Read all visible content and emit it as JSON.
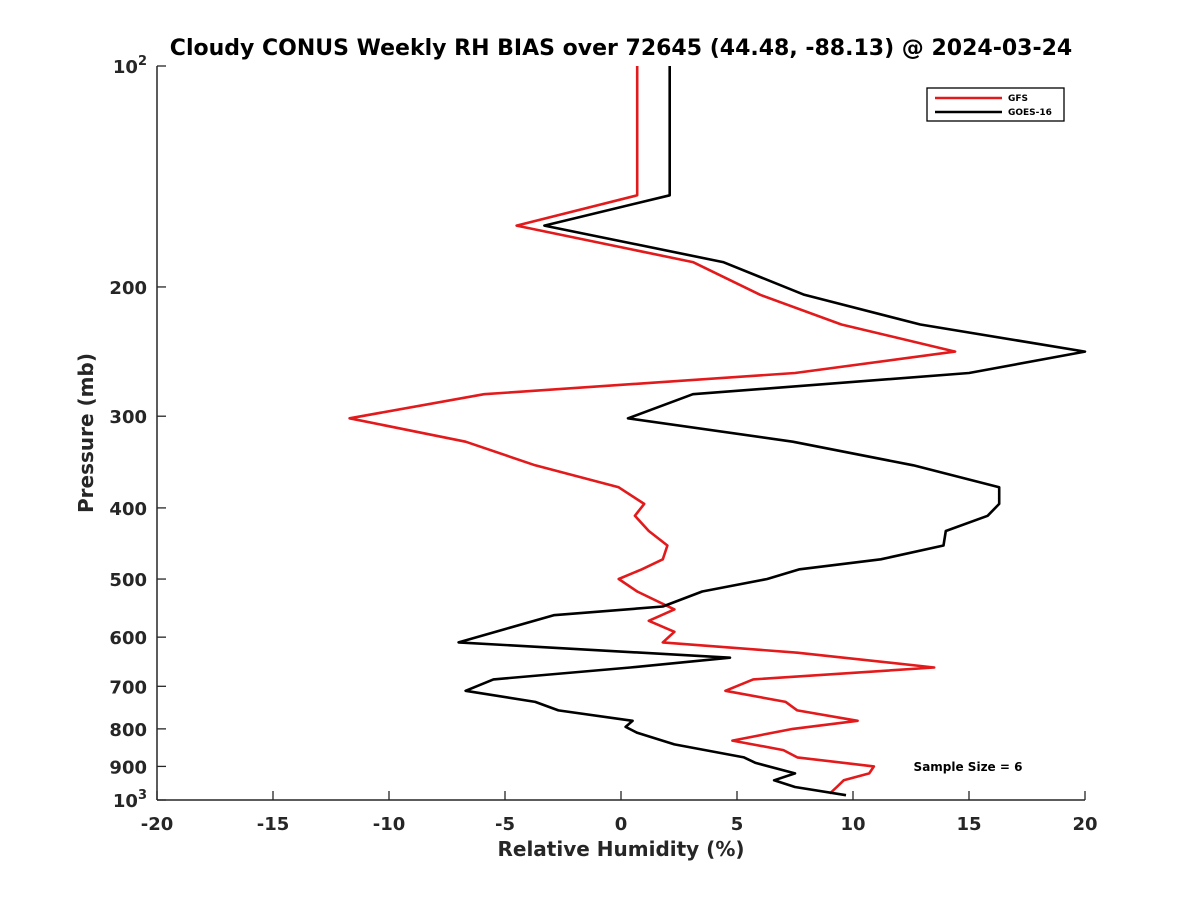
{
  "chart_data": {
    "type": "line",
    "title": "Cloudy CONUS Weekly RH BIAS over 72645 (44.48, -88.13) @ 2024-03-24",
    "xlabel": "Relative Humidity (%)",
    "ylabel": "Pressure (mb)",
    "xlim": [
      -20,
      20
    ],
    "ylim": [
      100,
      1000
    ],
    "y_scale": "log",
    "y_reversed": true,
    "grid": false,
    "legend_position": "top-right",
    "x_ticks": [
      "-20",
      "-15",
      "-10",
      "-5",
      "0",
      "5",
      "10",
      "15",
      "20"
    ],
    "y_ticks": [
      {
        "value": 100,
        "base": "10",
        "exp": "2"
      },
      {
        "value": 200,
        "label": "200"
      },
      {
        "value": 300,
        "label": "300"
      },
      {
        "value": 400,
        "label": "400"
      },
      {
        "value": 500,
        "label": "500"
      },
      {
        "value": 600,
        "label": "600"
      },
      {
        "value": 700,
        "label": "700"
      },
      {
        "value": 800,
        "label": "800"
      },
      {
        "value": 900,
        "label": "900"
      },
      {
        "value": 1000,
        "base": "10",
        "exp": "3"
      }
    ],
    "annotation": "Sample Size = 6",
    "series": [
      {
        "name": "GFS",
        "color": "#e31a1c",
        "points": [
          [
            0.7,
            100
          ],
          [
            0.7,
            125
          ],
          [
            0.7,
            150
          ],
          [
            -4.5,
            165
          ],
          [
            3.1,
            185
          ],
          [
            6.0,
            205
          ],
          [
            9.5,
            225
          ],
          [
            14.4,
            245
          ],
          [
            7.5,
            262
          ],
          [
            -5.9,
            280
          ],
          [
            -11.7,
            302
          ],
          [
            -6.7,
            325
          ],
          [
            -3.7,
            350
          ],
          [
            -0.1,
            375
          ],
          [
            1.0,
            395
          ],
          [
            0.6,
            410
          ],
          [
            1.2,
            430
          ],
          [
            2.0,
            450
          ],
          [
            1.8,
            470
          ],
          [
            0.9,
            485
          ],
          [
            -0.1,
            500
          ],
          [
            0.7,
            520
          ],
          [
            2.3,
            550
          ],
          [
            1.2,
            570
          ],
          [
            2.3,
            590
          ],
          [
            1.8,
            610
          ],
          [
            7.6,
            630
          ],
          [
            13.5,
            660
          ],
          [
            5.7,
            685
          ],
          [
            4.5,
            710
          ],
          [
            7.1,
            735
          ],
          [
            7.6,
            755
          ],
          [
            10.2,
            780
          ],
          [
            7.4,
            800
          ],
          [
            4.8,
            830
          ],
          [
            7.0,
            855
          ],
          [
            7.6,
            875
          ],
          [
            10.9,
            900
          ],
          [
            10.7,
            920
          ],
          [
            9.6,
            940
          ],
          [
            9.3,
            960
          ],
          [
            9.0,
            980
          ]
        ]
      },
      {
        "name": "GOES-16",
        "color": "#000000",
        "points": [
          [
            2.1,
            100
          ],
          [
            2.1,
            125
          ],
          [
            2.1,
            150
          ],
          [
            -3.3,
            165
          ],
          [
            4.4,
            185
          ],
          [
            7.9,
            205
          ],
          [
            12.9,
            225
          ],
          [
            20.0,
            245
          ],
          [
            15.0,
            262
          ],
          [
            3.1,
            280
          ],
          [
            0.3,
            302
          ],
          [
            7.4,
            325
          ],
          [
            12.6,
            350
          ],
          [
            16.3,
            375
          ],
          [
            16.3,
            395
          ],
          [
            15.8,
            410
          ],
          [
            14.0,
            430
          ],
          [
            13.9,
            450
          ],
          [
            11.2,
            470
          ],
          [
            7.7,
            485
          ],
          [
            6.3,
            500
          ],
          [
            3.5,
            520
          ],
          [
            1.8,
            545
          ],
          [
            -2.9,
            560
          ],
          [
            -5.0,
            585
          ],
          [
            -7.0,
            610
          ],
          [
            4.7,
            640
          ],
          [
            0.4,
            660
          ],
          [
            -5.5,
            685
          ],
          [
            -6.7,
            710
          ],
          [
            -3.7,
            735
          ],
          [
            -2.7,
            755
          ],
          [
            0.5,
            780
          ],
          [
            0.2,
            795
          ],
          [
            0.7,
            810
          ],
          [
            2.3,
            840
          ],
          [
            5.3,
            875
          ],
          [
            5.8,
            890
          ],
          [
            7.5,
            920
          ],
          [
            6.6,
            940
          ],
          [
            7.5,
            960
          ],
          [
            9.7,
            985
          ]
        ]
      }
    ]
  }
}
